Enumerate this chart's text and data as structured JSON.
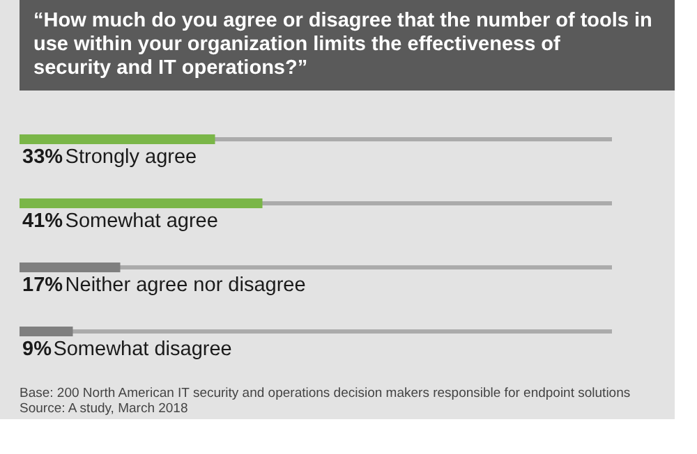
{
  "chart_data": {
    "type": "bar",
    "orientation": "horizontal",
    "title": "“How much do you agree or disagree that the number of tools in use within your organization limits the effectiveness of security and IT operations?”",
    "categories": [
      "Strongly agree",
      "Somewhat agree",
      "Neither agree nor disagree",
      "Somewhat disagree"
    ],
    "values": [
      33,
      41,
      17,
      9
    ],
    "colors": [
      "#7ab648",
      "#7ab648",
      "#7f7f7f",
      "#7f7f7f"
    ],
    "value_labels": [
      "33%",
      "41%",
      "17%",
      "9%"
    ],
    "xlim": [
      0,
      100
    ],
    "annotations": [
      "Base: 200 North American IT security and operations decision makers responsible for endpoint solutions",
      "Source: A study, March 2018"
    ]
  }
}
